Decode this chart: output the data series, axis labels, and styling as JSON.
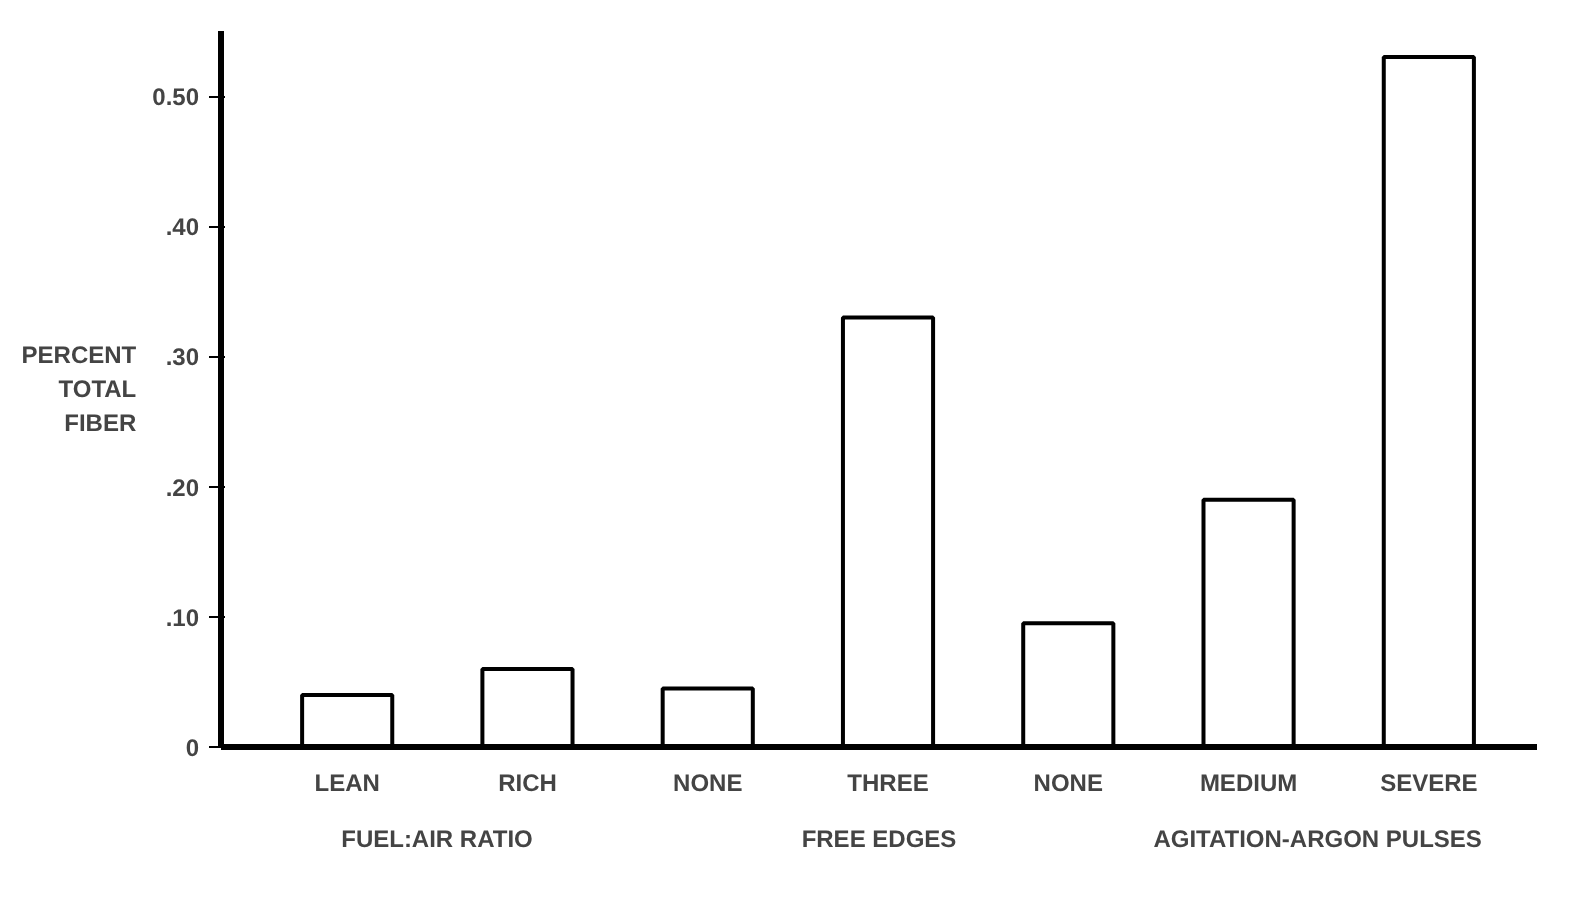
{
  "chart_data": {
    "type": "bar",
    "ylabel": "PERCENT TOTAL FIBER",
    "categories": [
      "LEAN",
      "RICH",
      "NONE",
      "THREE",
      "NONE",
      "MEDIUM",
      "SEVERE"
    ],
    "values": [
      0.04,
      0.06,
      0.045,
      0.33,
      0.095,
      0.19,
      0.53
    ],
    "color": "#ffffff",
    "ylim": [
      0,
      0.55
    ],
    "yticks": [
      {
        "value": 0,
        "label": "0"
      },
      {
        "value": 0.1,
        "label": ".10"
      },
      {
        "value": 0.2,
        "label": ".20"
      },
      {
        "value": 0.3,
        "label": ".30"
      },
      {
        "value": 0.4,
        "label": ".40"
      },
      {
        "value": 0.5,
        "label": "0.50"
      }
    ],
    "annotations": [
      "FUEL:AIR  RATIO",
      "FREE EDGES",
      "AGITATION-ARGON PULSES"
    ],
    "grid": false
  }
}
